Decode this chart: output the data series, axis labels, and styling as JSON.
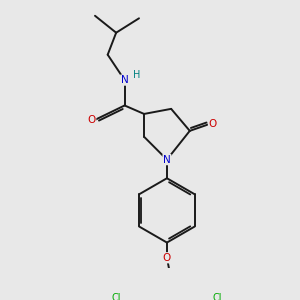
{
  "bg_color": "#e8e8e8",
  "bond_color": "#1a1a1a",
  "bond_width": 1.4,
  "atom_colors": {
    "N": "#0000cc",
    "O": "#cc0000",
    "Cl": "#00aa00",
    "H": "#008080"
  },
  "fig_size": [
    3.0,
    3.0
  ],
  "dpi": 100
}
